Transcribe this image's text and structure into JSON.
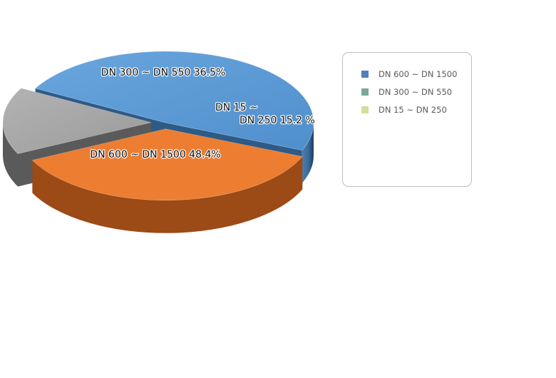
{
  "chart_data": {
    "type": "pie",
    "style": "3d",
    "title": "",
    "slices": [
      {
        "label": "DN 600 ~ DN 1500",
        "value": 48.4,
        "data_label_lines": [
          "DN 600 ~ DN 1500 48.4%"
        ],
        "color": "#5b9bd5",
        "side_color": "#2e5b86",
        "exploded": false
      },
      {
        "label": "DN 300 ~ DN 550",
        "value": 36.5,
        "data_label_lines": [
          "DN 300 ~ DN 550 36.5%"
        ],
        "color": "#ed7d31",
        "side_color": "#9c4a16",
        "exploded": true
      },
      {
        "label": "DN 15 ~ DN 250",
        "value": 15.2,
        "data_label_lines": [
          "DN 15 ~",
          "DN 250 15.2 %"
        ],
        "color": "#a5a5a5",
        "side_color": "#5a5a5a",
        "exploded": true
      }
    ],
    "legend": {
      "position": "right",
      "entries": [
        {
          "label": "DN 600 ~ DN 1500",
          "color": "#4f81bd"
        },
        {
          "label": "DN 300 ~ DN 550",
          "color": "#7ba79d"
        },
        {
          "label": "DN 15 ~ DN 250",
          "color": "#d6dc9a"
        }
      ]
    }
  }
}
